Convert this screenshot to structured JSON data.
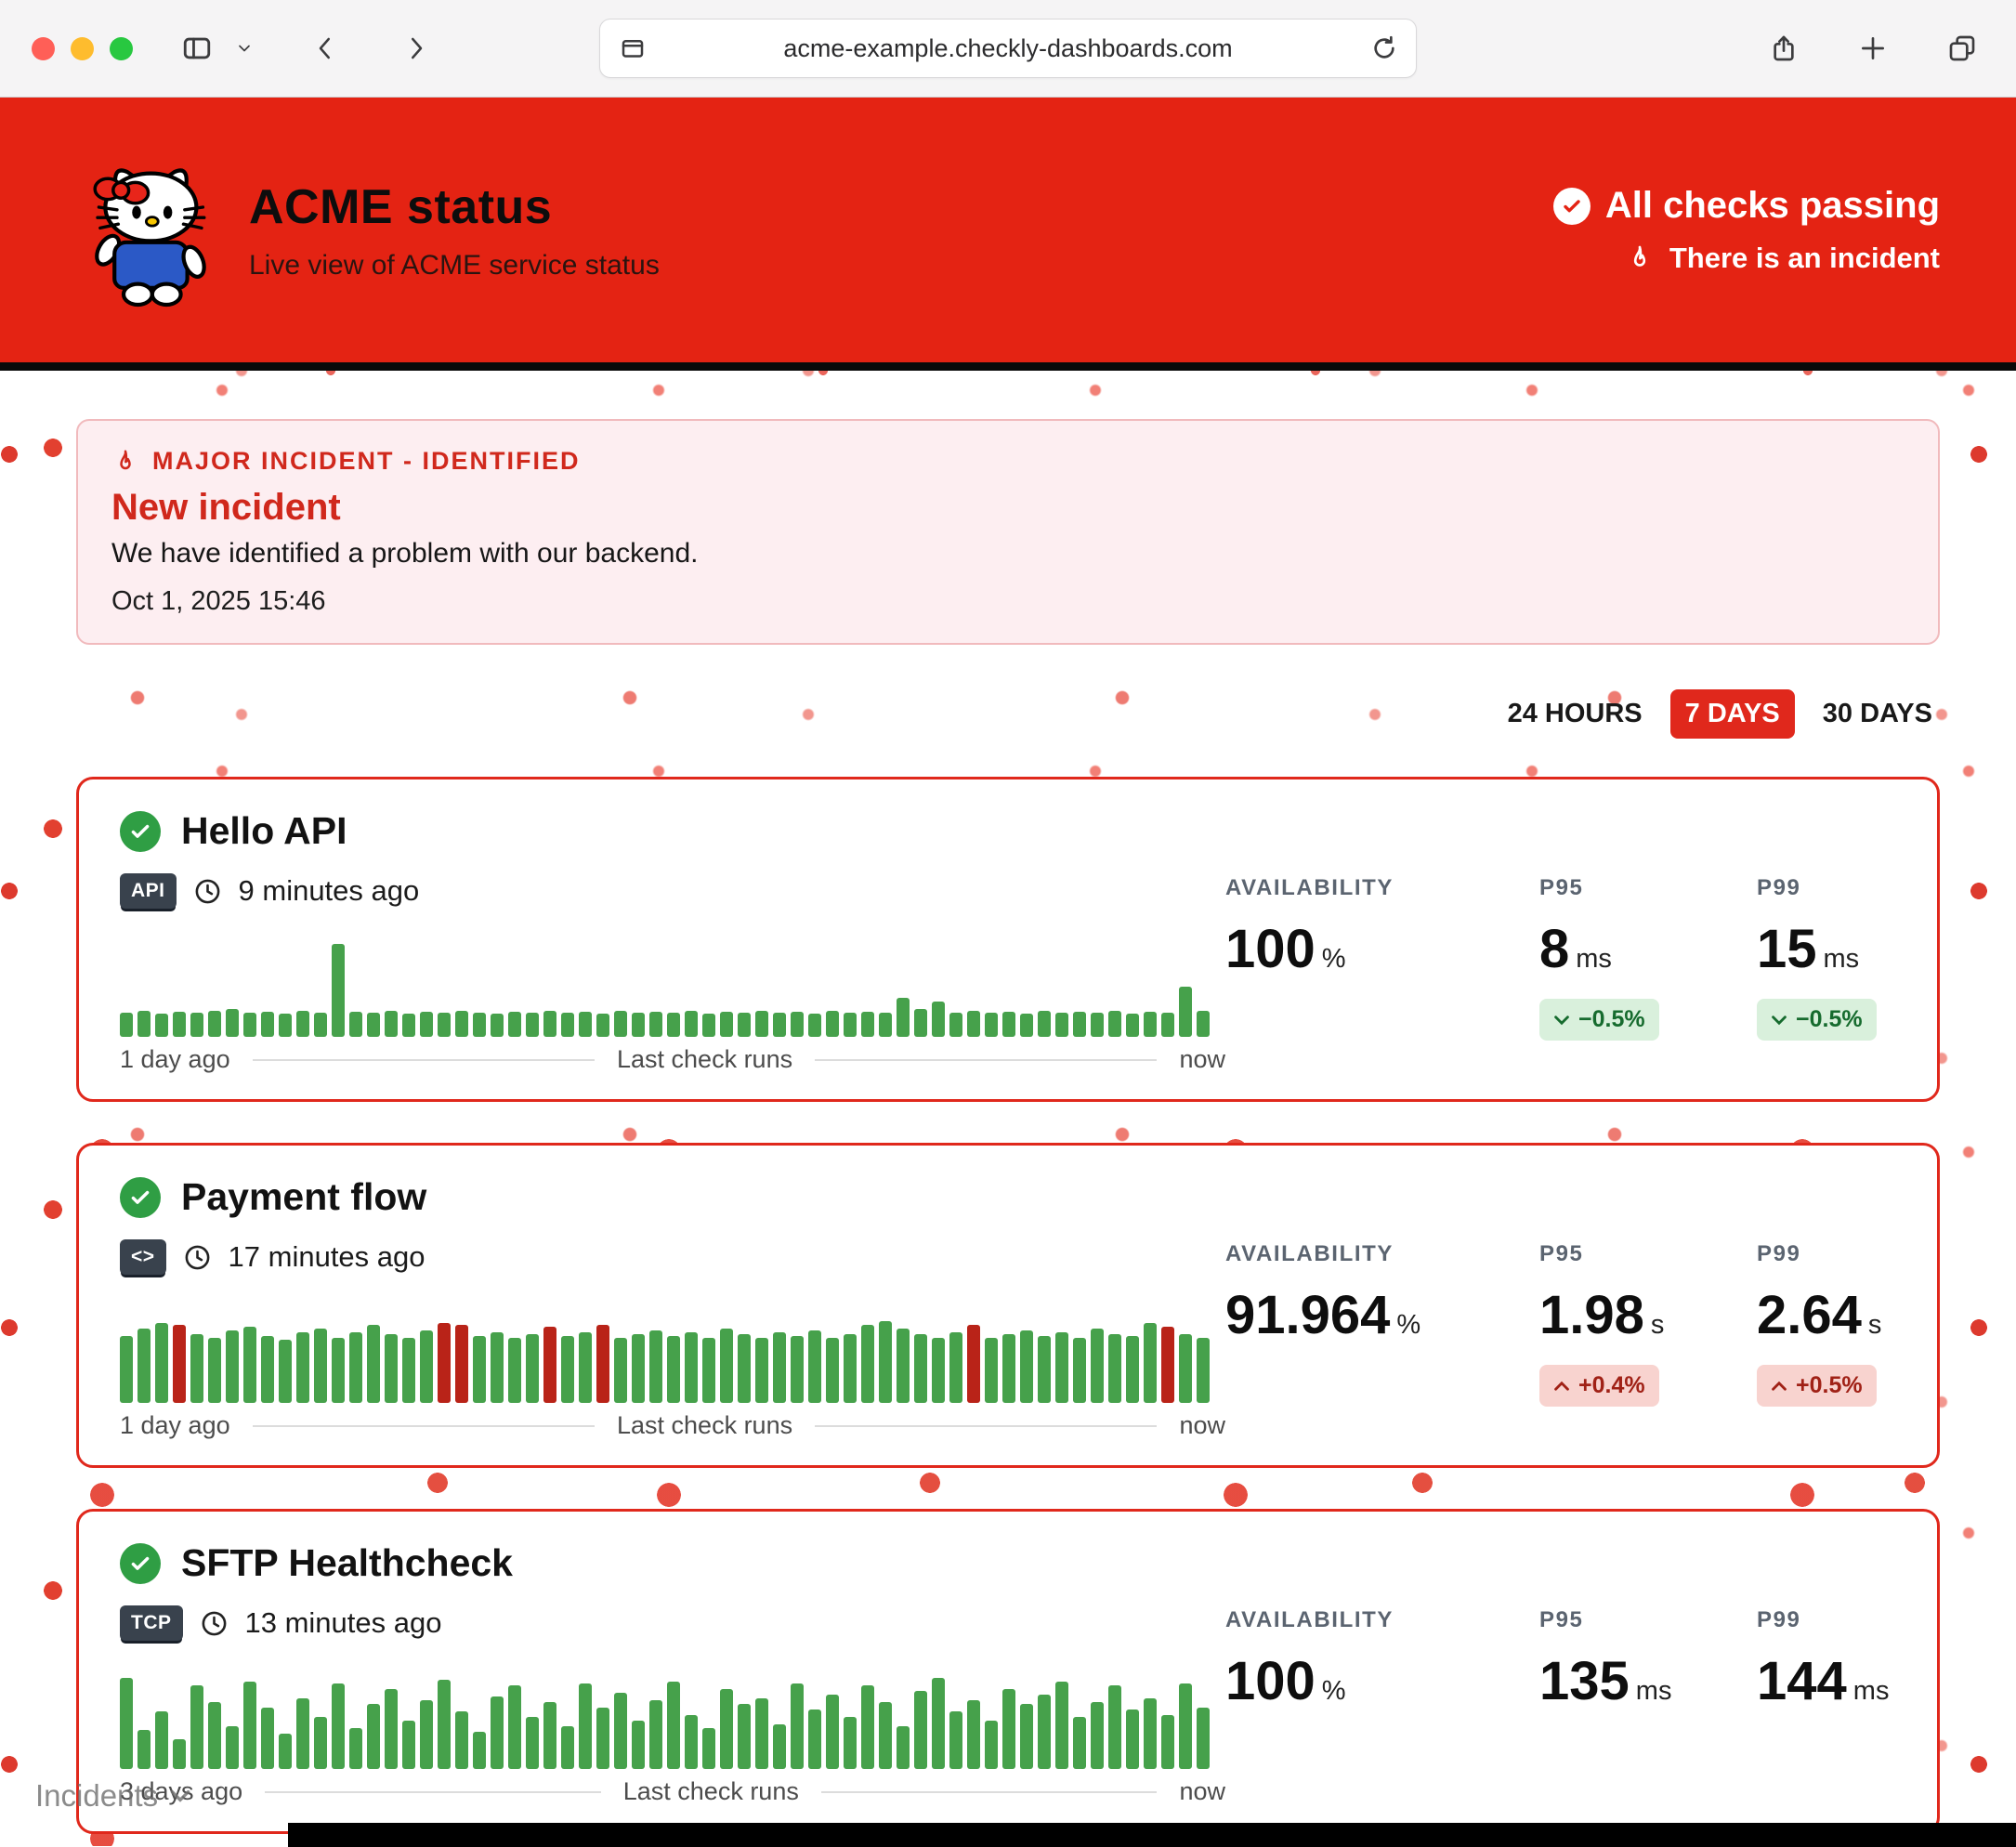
{
  "browser": {
    "url": "acme-example.checkly-dashboards.com"
  },
  "header": {
    "title": "ACME status",
    "subtitle": "Live view of ACME service status",
    "all_checks_label": "All checks passing",
    "incident_link_label": "There is an incident"
  },
  "incident_banner": {
    "severity": "MAJOR INCIDENT - IDENTIFIED",
    "title": "New incident",
    "message": "We have identified a problem with our backend.",
    "timestamp": "Oct 1, 2025 15:46"
  },
  "time_range": {
    "options": [
      "24 HOURS",
      "7 DAYS",
      "30 DAYS"
    ],
    "selected": "7 DAYS"
  },
  "stats_labels": {
    "availability": "AVAILABILITY",
    "p95": "P95",
    "p99": "P99"
  },
  "colors": {
    "brand_red": "#e42313",
    "card_border_red": "#e0281c",
    "bar_green": "#46a14b",
    "bar_red": "#b92318",
    "pill_green_bg": "#d9f0dc",
    "pill_red_bg": "#f8d3cf"
  },
  "checks": [
    {
      "name": "Hello API",
      "type_badge": "API",
      "last_run": "9 minutes ago",
      "timeline_start": "1 day ago",
      "timeline_label": "Last check runs",
      "timeline_end": "now",
      "availability": "100",
      "availability_unit": "%",
      "p95": "8",
      "p95_unit": "ms",
      "p95_delta": "−0.5%",
      "p95_trend": "down",
      "p99": "15",
      "p99_unit": "ms",
      "p99_delta": "−0.5%",
      "p99_trend": "down",
      "bar_heights": [
        26,
        28,
        25,
        27,
        26,
        28,
        30,
        26,
        27,
        25,
        28,
        26,
        100,
        27,
        26,
        28,
        25,
        27,
        26,
        28,
        26,
        25,
        27,
        26,
        28,
        26,
        27,
        25,
        28,
        26,
        27,
        26,
        28,
        25,
        27,
        26,
        28,
        26,
        27,
        25,
        28,
        26,
        27,
        26,
        42,
        30,
        38,
        26,
        28,
        26,
        27,
        25,
        28,
        26,
        27,
        26,
        28,
        25,
        27,
        26,
        54,
        28
      ],
      "bar_red_indices": []
    },
    {
      "name": "Payment flow",
      "type_badge": "<>",
      "last_run": "17 minutes ago",
      "timeline_start": "1 day ago",
      "timeline_label": "Last check runs",
      "timeline_end": "now",
      "availability": "91.964",
      "availability_unit": "%",
      "p95": "1.98",
      "p95_unit": "s",
      "p95_delta": "+0.4%",
      "p95_trend": "up",
      "p99": "2.64",
      "p99_unit": "s",
      "p99_delta": "+0.5%",
      "p99_trend": "up",
      "bar_heights": [
        72,
        80,
        86,
        84,
        74,
        70,
        78,
        82,
        72,
        68,
        76,
        80,
        70,
        76,
        84,
        74,
        70,
        78,
        86,
        84,
        72,
        76,
        70,
        74,
        82,
        72,
        76,
        84,
        70,
        74,
        78,
        72,
        76,
        70,
        80,
        74,
        70,
        76,
        72,
        78,
        70,
        74,
        84,
        88,
        80,
        74,
        70,
        76,
        84,
        70,
        74,
        78,
        72,
        76,
        70,
        80,
        74,
        72,
        86,
        82,
        74,
        70
      ],
      "bar_red_indices": [
        3,
        18,
        19,
        24,
        27,
        48,
        59
      ]
    },
    {
      "name": "SFTP Healthcheck",
      "type_badge": "TCP",
      "last_run": "13 minutes ago",
      "timeline_start": "3 days ago",
      "timeline_label": "Last check runs",
      "timeline_end": "now",
      "availability": "100",
      "availability_unit": "%",
      "p95": "135",
      "p95_unit": "ms",
      "p95_delta": "",
      "p95_trend": "",
      "p99": "144",
      "p99_unit": "ms",
      "p99_delta": "",
      "p99_trend": "",
      "bar_heights": [
        98,
        42,
        62,
        32,
        90,
        72,
        46,
        94,
        66,
        38,
        76,
        56,
        92,
        44,
        70,
        86,
        52,
        74,
        96,
        62,
        40,
        78,
        90,
        56,
        72,
        46,
        92,
        66,
        82,
        52,
        74,
        94,
        58,
        44,
        86,
        70,
        76,
        48,
        92,
        64,
        80,
        56,
        90,
        72,
        46,
        84,
        98,
        62,
        74,
        52,
        86,
        70,
        80,
        94,
        56,
        72,
        90,
        64,
        76,
        58,
        92,
        66
      ],
      "bar_red_indices": []
    }
  ],
  "footer": {
    "incidents_label": "Incidents"
  }
}
